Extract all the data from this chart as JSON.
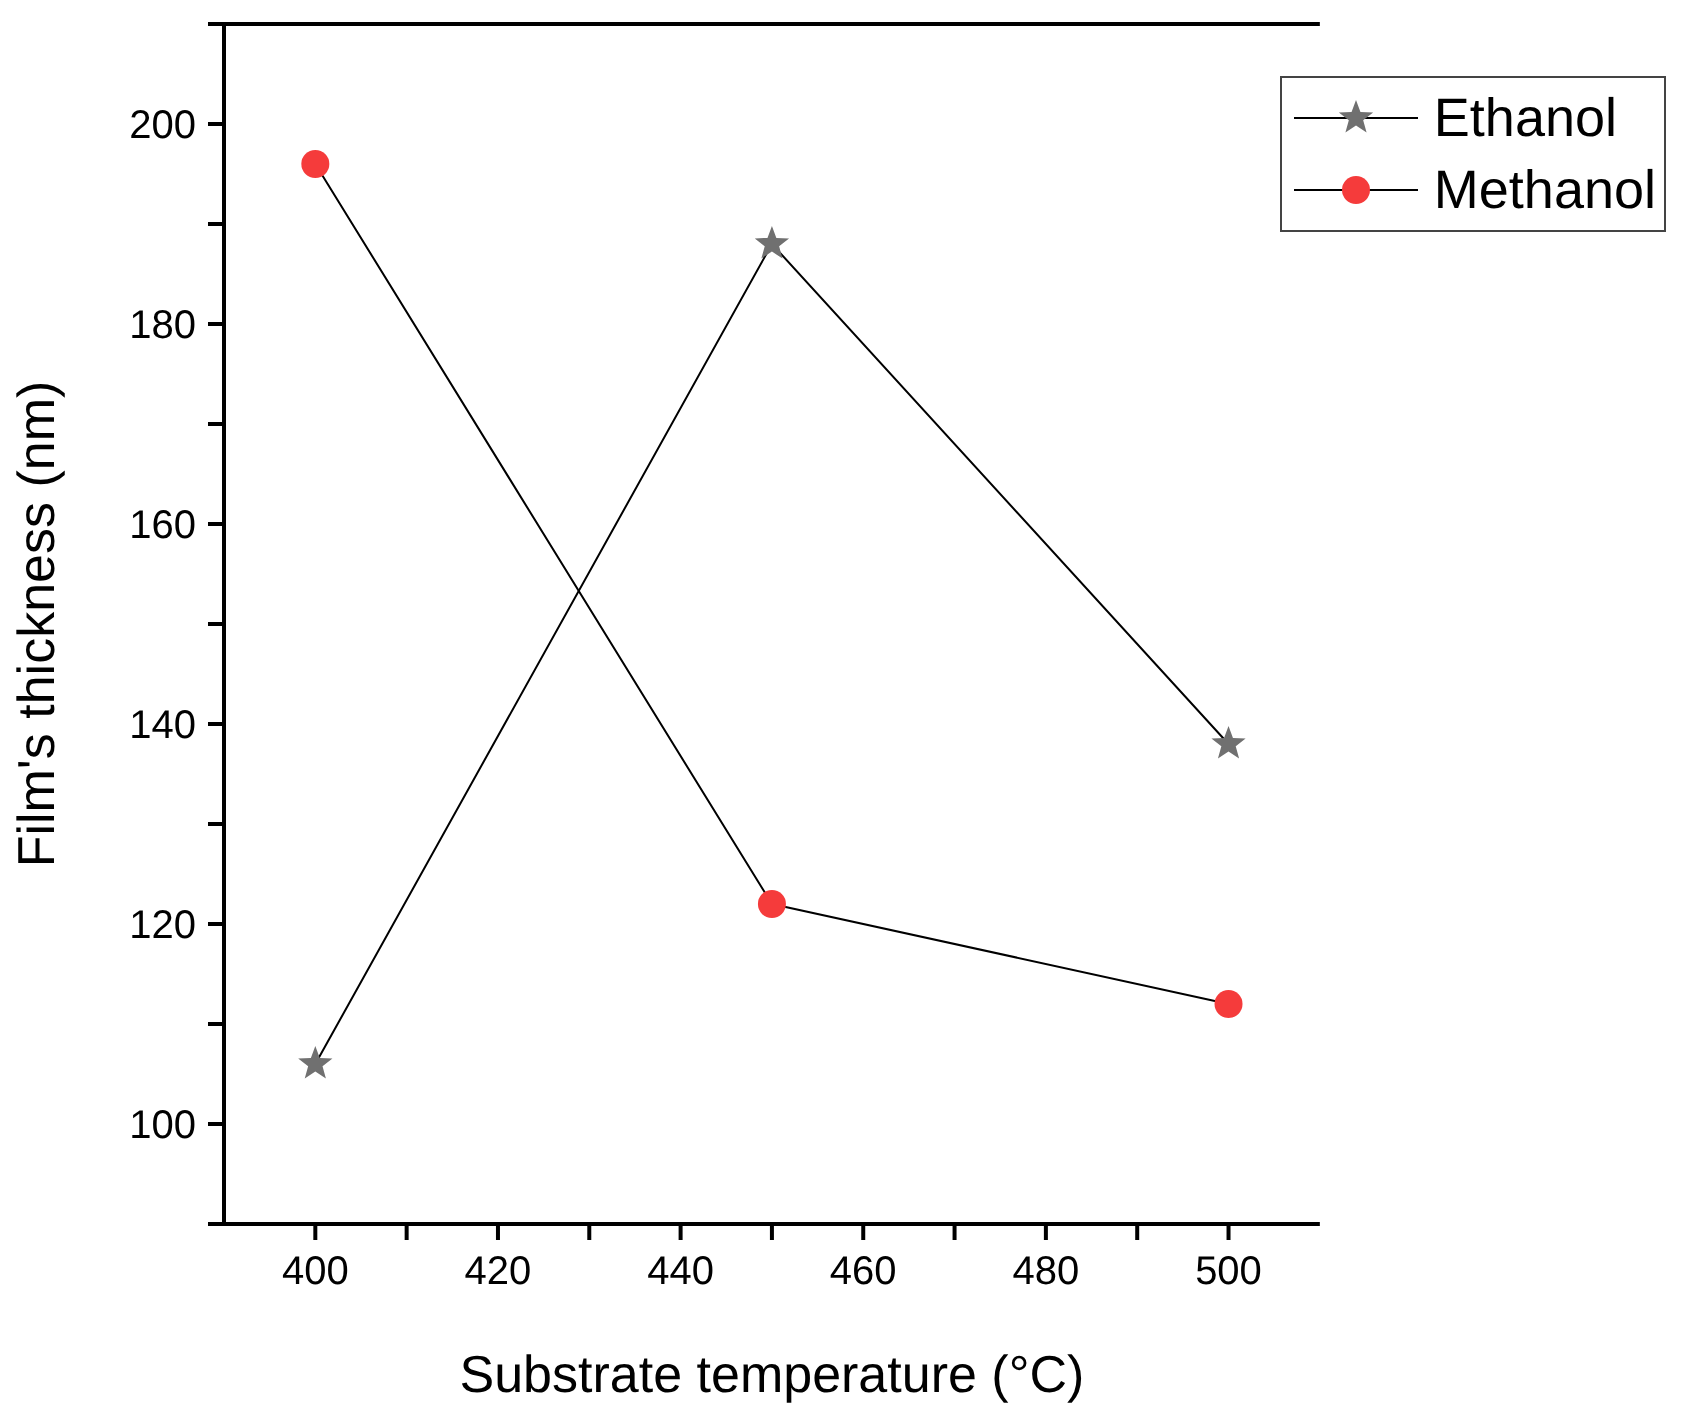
{
  "chart_data": {
    "type": "line",
    "xlabel": "Substrate temperature (°C)",
    "ylabel": "Film's thickness (nm)",
    "x": [
      400,
      450,
      500
    ],
    "series": [
      {
        "name": "Ethanol",
        "color": "#707070",
        "marker": "star",
        "values": [
          106,
          188,
          138
        ]
      },
      {
        "name": "Methanol",
        "color": "#f53b3b",
        "marker": "circle",
        "values": [
          196,
          122,
          112
        ]
      }
    ],
    "xlim": [
      390,
      510
    ],
    "xticks": [
      400,
      {
        "value": 410,
        "label": null
      },
      420,
      {
        "value": 430,
        "label": null
      },
      440,
      {
        "value": 450,
        "label": null
      },
      460,
      {
        "value": 470,
        "label": null
      },
      480,
      {
        "value": 490,
        "label": null
      },
      500
    ],
    "ylim": [
      90,
      210
    ],
    "yticks": [
      {
        "value": 90,
        "label": null
      },
      100,
      {
        "value": 110,
        "label": null
      },
      120,
      {
        "value": 130,
        "label": null
      },
      140,
      {
        "value": 150,
        "label": null
      },
      160,
      {
        "value": 170,
        "label": null
      },
      180,
      {
        "value": 190,
        "label": null
      },
      200,
      {
        "value": 210,
        "label": null
      }
    ],
    "grid": false,
    "legend": "top right",
    "line_style": "solid"
  }
}
